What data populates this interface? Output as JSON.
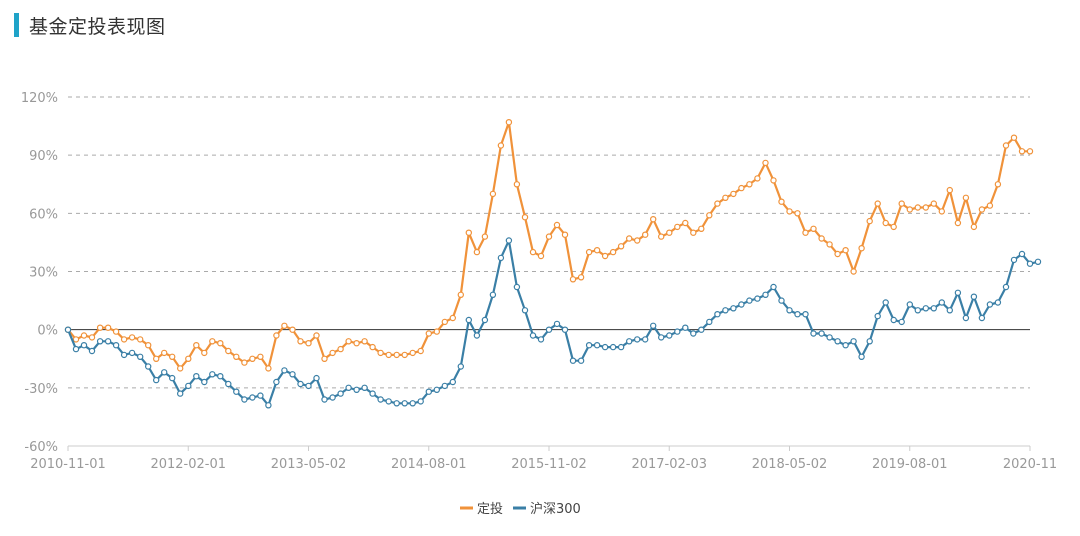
{
  "title": "基金定投表现图",
  "colors": {
    "accent": "#1fa3c8",
    "series_a": "#f0923a",
    "series_b": "#3a7fa6",
    "grid": "#aaaaaa"
  },
  "chart_data": {
    "type": "line",
    "title": "基金定投表现图",
    "xlabel": "",
    "ylabel": "",
    "ylim": [
      -60,
      120
    ],
    "yticks": [
      -60,
      -30,
      0,
      30,
      60,
      90,
      120
    ],
    "ytick_labels": [
      "-60%",
      "-30%",
      "0%",
      "30%",
      "60%",
      "90%",
      "120%"
    ],
    "xtick_labels": [
      "2010-11-01",
      "2012-02-01",
      "2013-05-02",
      "2014-08-01",
      "2015-11-02",
      "2017-02-03",
      "2018-05-02",
      "2019-08-01",
      "2020-11"
    ],
    "grid": "horizontal-dashed",
    "legend": "bottom-center",
    "series": [
      {
        "name": "定投",
        "color": "#f0923a",
        "values": [
          0,
          -5,
          -3,
          -4,
          1,
          1,
          -1,
          -5,
          -4,
          -5,
          -8,
          -15,
          -12,
          -14,
          -20,
          -15,
          -8,
          -12,
          -6,
          -7,
          -11,
          -14,
          -17,
          -15,
          -14,
          -20,
          -3,
          2,
          0,
          -6,
          -7,
          -3,
          -15,
          -12,
          -10,
          -6,
          -7,
          -6,
          -9,
          -12,
          -13,
          -13,
          -13,
          -12,
          -11,
          -2,
          -1,
          4,
          6,
          18,
          50,
          40,
          48,
          70,
          95,
          107,
          75,
          58,
          40,
          38,
          48,
          54,
          49,
          26,
          27,
          40,
          41,
          38,
          40,
          43,
          47,
          46,
          49,
          57,
          48,
          50,
          53,
          55,
          50,
          52,
          59,
          65,
          68,
          70,
          73,
          75,
          78,
          86,
          77,
          66,
          61,
          60,
          50,
          52,
          47,
          44,
          39,
          41,
          30,
          42,
          56,
          65,
          55,
          53,
          65,
          62,
          63,
          63,
          65,
          61,
          72,
          55,
          68,
          53,
          62,
          64,
          75,
          95,
          99,
          92,
          92
        ]
      },
      {
        "name": "沪深300",
        "color": "#3a7fa6",
        "values": [
          0,
          -10,
          -8,
          -11,
          -6,
          -6,
          -8,
          -13,
          -12,
          -14,
          -19,
          -26,
          -22,
          -25,
          -33,
          -29,
          -24,
          -27,
          -23,
          -24,
          -28,
          -32,
          -36,
          -35,
          -34,
          -39,
          -27,
          -21,
          -23,
          -28,
          -29,
          -25,
          -36,
          -35,
          -33,
          -30,
          -31,
          -30,
          -33,
          -36,
          -37,
          -38,
          -38,
          -38,
          -37,
          -32,
          -31,
          -29,
          -27,
          -19,
          5,
          -3,
          5,
          18,
          37,
          46,
          22,
          10,
          -3,
          -5,
          0,
          3,
          0,
          -16,
          -16,
          -8,
          -8,
          -9,
          -9,
          -9,
          -6,
          -5,
          -5,
          2,
          -4,
          -3,
          -1,
          1,
          -2,
          0,
          4,
          8,
          10,
          11,
          13,
          15,
          16,
          18,
          22,
          15,
          10,
          8,
          8,
          -2,
          -2,
          -4,
          -6,
          -8,
          -6,
          -14,
          -6,
          7,
          14,
          5,
          4,
          13,
          10,
          11,
          11,
          14,
          10,
          19,
          6,
          17,
          6,
          13,
          14,
          22,
          36,
          39,
          34,
          35
        ]
      }
    ]
  }
}
